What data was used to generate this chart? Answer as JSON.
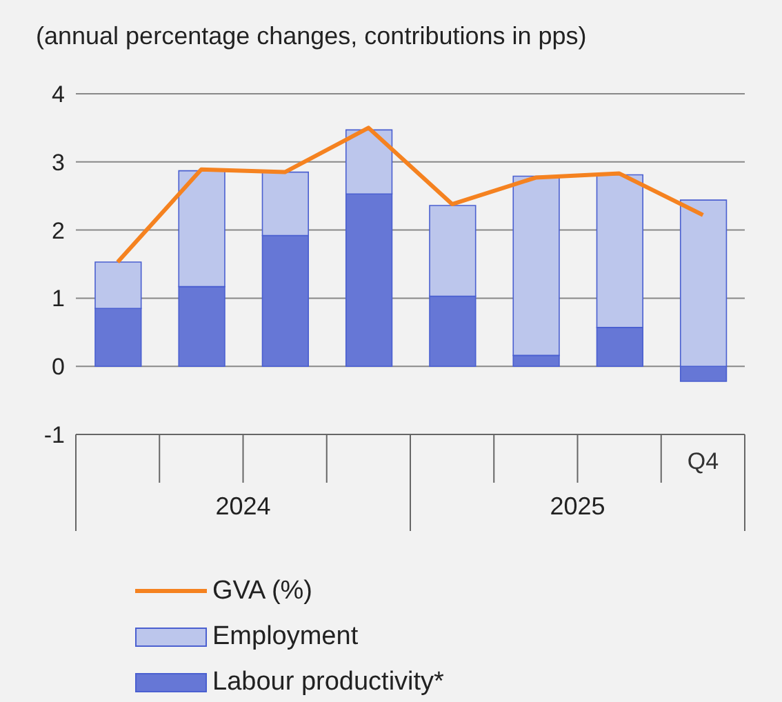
{
  "chart_data": {
    "type": "bar",
    "title": "(annual percentage changes, contributions in pps)",
    "categories": [
      null,
      null,
      null,
      null,
      null,
      null,
      null,
      "Q4"
    ],
    "series": [
      {
        "name": "Labour productivity*",
        "color": "#6677d6",
        "values": [
          0.85,
          1.17,
          1.92,
          2.53,
          1.03,
          0.16,
          0.57,
          -0.22
        ]
      },
      {
        "name": "Employment",
        "color": "#bcc6ec",
        "values": [
          0.68,
          1.7,
          0.93,
          0.94,
          1.33,
          2.63,
          2.24,
          2.44
        ]
      },
      {
        "name": "GVA (%)",
        "type": "line",
        "color": "#f58220",
        "values": [
          1.53,
          2.89,
          2.85,
          3.5,
          2.38,
          2.77,
          2.83,
          2.22
        ]
      }
    ],
    "stacked": true,
    "ylim": [
      -1,
      4
    ],
    "yticks": [
      -1,
      0,
      1,
      2,
      3,
      4
    ],
    "grid": "y",
    "legend": "bottom",
    "marker": "none",
    "annotations": [
      "2024",
      "2025"
    ]
  }
}
